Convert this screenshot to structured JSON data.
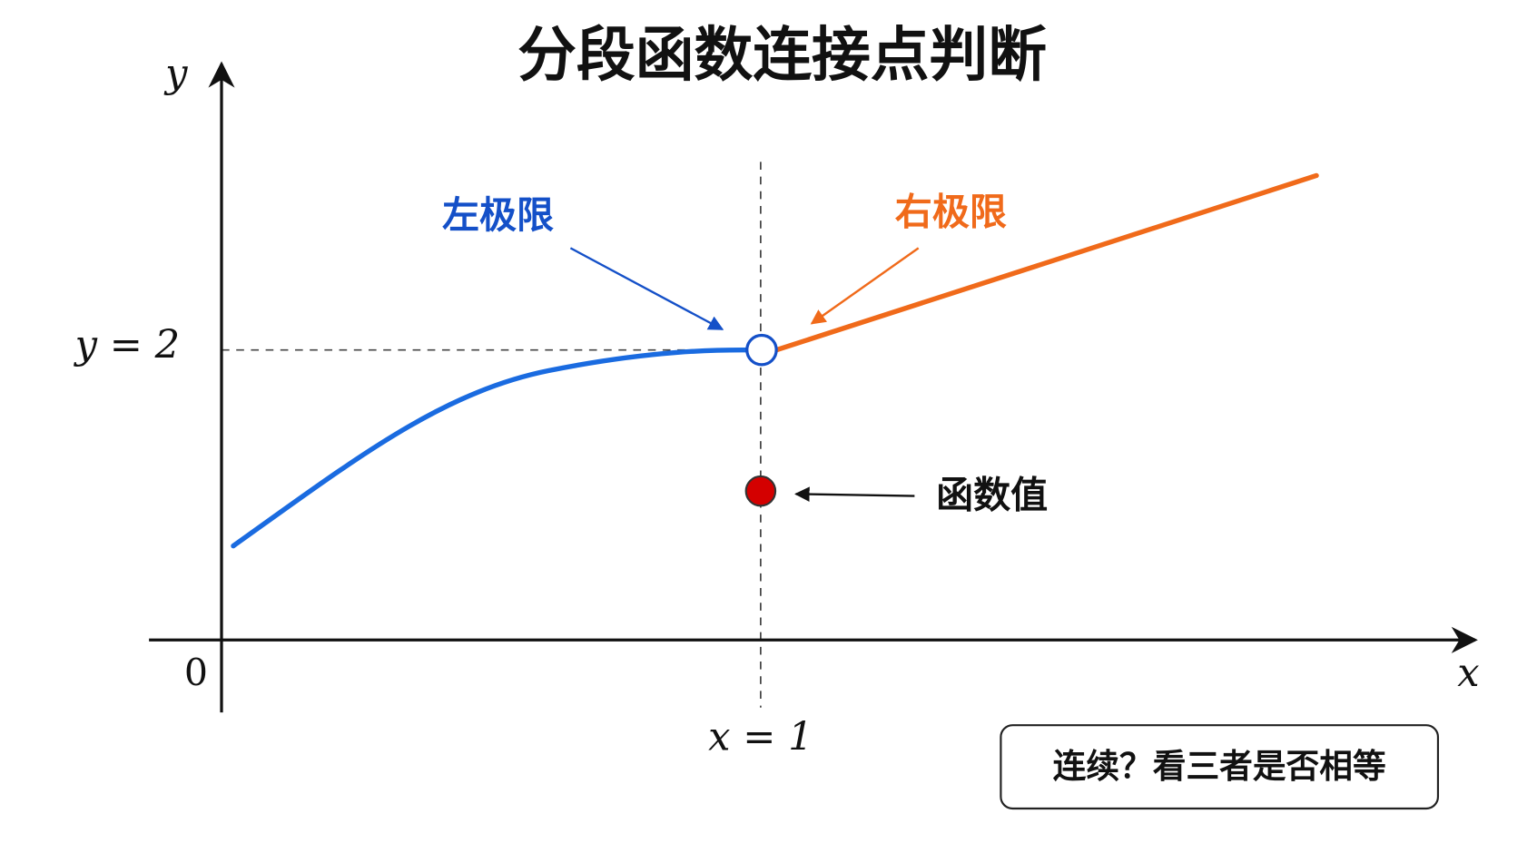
{
  "title": "分段函数连接点判断",
  "axes": {
    "y_label": "y",
    "x_label": "x",
    "origin": "0"
  },
  "guides": {
    "y_level": "y = 2",
    "x_level": "x = 1"
  },
  "annotations": {
    "left_limit": "左极限",
    "right_limit": "右极限",
    "function_value": "函数值"
  },
  "note": "连续？看三者是否相等"
}
